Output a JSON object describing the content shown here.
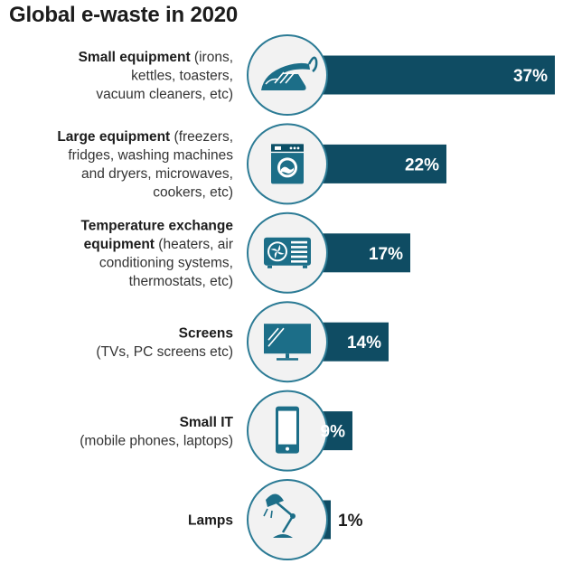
{
  "chart_data": {
    "type": "bar",
    "orientation": "horizontal",
    "title": "Global e-waste in 2020",
    "unit": "%",
    "xlim": [
      0,
      37
    ],
    "grid": false,
    "legend": "none",
    "colors": {
      "bar": "#0f4c63",
      "circle_fill": "#f2f2f2",
      "circle_stroke": "#2c7b95",
      "icon": "#1c6e88",
      "value_on_bar": "#ffffff",
      "value_outside": "#1c1c1c"
    },
    "categories": [
      {
        "name": "Small equipment",
        "detail": "(irons, kettles, toasters, vacuum cleaners, etc)",
        "value": 37,
        "value_label": "37%",
        "icon": "iron-icon",
        "label_lines": [
          [
            "Small equipment",
            " (irons,"
          ],
          [
            "",
            "kettles, toasters,"
          ],
          [
            "",
            "vacuum cleaners, etc)"
          ]
        ]
      },
      {
        "name": "Large equipment",
        "detail": "(freezers, fridges, washing machines and dryers, microwaves, cookers, etc)",
        "value": 22,
        "value_label": "22%",
        "icon": "washing-machine-icon",
        "label_lines": [
          [
            "Large equipment",
            " (freezers,"
          ],
          [
            "",
            "fridges, washing machines"
          ],
          [
            "",
            "and dryers, microwaves,"
          ],
          [
            "",
            "cookers, etc)"
          ]
        ]
      },
      {
        "name": "Temperature exchange equipment",
        "detail": "(heaters, air conditioning systems, thermostats, etc)",
        "value": 17,
        "value_label": "17%",
        "icon": "air-conditioner-icon",
        "label_lines": [
          [
            "Temperature exchange",
            ""
          ],
          [
            "equipment",
            " (heaters, air"
          ],
          [
            "",
            "conditioning systems,"
          ],
          [
            "",
            "thermostats, etc)"
          ]
        ]
      },
      {
        "name": "Screens",
        "detail": "(TVs, PC screens etc)",
        "value": 14,
        "value_label": "14%",
        "icon": "tv-screen-icon",
        "label_lines": [
          [
            "Screens",
            ""
          ],
          [
            "",
            "(TVs, PC screens etc)"
          ]
        ]
      },
      {
        "name": "Small IT",
        "detail": "(mobile phones, laptops)",
        "value": 9,
        "value_label": "9%",
        "icon": "mobile-phone-icon",
        "label_lines": [
          [
            "Small IT",
            ""
          ],
          [
            "",
            "(mobile phones, laptops)"
          ]
        ]
      },
      {
        "name": "Lamps",
        "detail": "",
        "value": 1,
        "value_label": "1%",
        "icon": "desk-lamp-icon",
        "label_lines": [
          [
            "Lamps",
            ""
          ]
        ]
      }
    ]
  }
}
